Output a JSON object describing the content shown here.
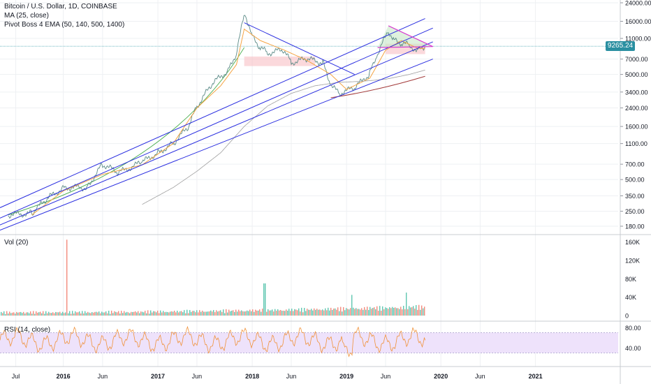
{
  "header": {
    "symbol": "Bitcoin / U.S. Dollar, 1D, COINBASE",
    "ma_label": "MA (25, close)",
    "ema_label": "Pivot Boss 4 EMA (50, 140, 500, 1400)",
    "last_price": "9265.24"
  },
  "panes": {
    "vol_label": "Vol (20)",
    "rsi_label": "RSI (14, close)"
  },
  "colors": {
    "channel": "#2a2ee0",
    "price_line": "#6fb8c2",
    "ma": "#f5a443",
    "ema50": "#4caf50",
    "ema1400": "#9e9e9e",
    "ema_late": "#a33b3b",
    "triangle": "#d63ccf",
    "zone": "#f7b9c0",
    "vol_up": "#5fc6b0",
    "vol_down": "#f28a7d",
    "rsi": "#f0923a",
    "rsi_band": "#eee2fb",
    "grid": "#eef0f3"
  },
  "chart_data": [
    {
      "type": "line",
      "title": "Bitcoin / U.S. Dollar, 1D, COINBASE",
      "scale": "log",
      "y_ticks": [
        "24000.00",
        "16000.00",
        "11000.00",
        "7000.00",
        "5000.00",
        "3400.00",
        "2400.00",
        "1600.00",
        "1100.00",
        "700.00",
        "500.00",
        "350.00",
        "250.00",
        "180.00"
      ],
      "x_ticks": [
        "Jul",
        "2016",
        "Jun",
        "2017",
        "Jun",
        "2018",
        "Jun",
        "2019",
        "Jun",
        "2020",
        "Jun",
        "2021"
      ],
      "grid": true,
      "last_value": 9265.24,
      "series": [
        {
          "name": "Bitcoin / U.S. Dollar",
          "x": [
            "2015-06",
            "2015-09",
            "2015-11",
            "2016-01",
            "2016-04",
            "2016-06",
            "2016-08",
            "2016-11",
            "2017-01",
            "2017-03",
            "2017-05",
            "2017-06",
            "2017-08",
            "2017-10",
            "2017-11",
            "2017-12-17",
            "2018-01",
            "2018-02",
            "2018-03",
            "2018-05",
            "2018-06",
            "2018-08",
            "2018-10",
            "2018-11",
            "2018-12",
            "2019-02",
            "2019-04",
            "2019-05",
            "2019-06-26",
            "2019-07",
            "2019-08",
            "2019-09",
            "2019-10",
            "2019-11"
          ],
          "y": [
            230,
            240,
            330,
            420,
            420,
            700,
            580,
            730,
            900,
            1100,
            1600,
            2500,
            4100,
            5500,
            8000,
            19500,
            11500,
            9000,
            8000,
            8500,
            6500,
            7000,
            6500,
            4000,
            3300,
            3700,
            5100,
            7800,
            13000,
            10500,
            10000,
            9500,
            8400,
            9265.24
          ]
        },
        {
          "name": "MA (25, close)",
          "x": [
            "2015-09",
            "2016-01",
            "2016-06",
            "2016-11",
            "2017-03",
            "2017-06",
            "2017-09",
            "2017-11",
            "2017-12",
            "2018-02",
            "2018-05",
            "2018-08",
            "2018-11",
            "2019-01",
            "2019-04",
            "2019-06",
            "2019-08",
            "2019-10",
            "2019-11"
          ],
          "y": [
            230,
            390,
            560,
            690,
            1100,
            2400,
            3900,
            6200,
            13500,
            10500,
            8600,
            6800,
            5000,
            3600,
            4600,
            8500,
            10500,
            8900,
            8800
          ]
        },
        {
          "name": "EMA 140",
          "x": [
            "2016-11",
            "2017-03",
            "2017-06",
            "2017-09",
            "2017-12",
            "2018-03",
            "2018-06",
            "2018-09",
            "2018-12",
            "2019-03",
            "2019-06",
            "2019-09",
            "2019-11"
          ],
          "y": [
            290,
            420,
            600,
            900,
            1600,
            2500,
            3300,
            3900,
            4200,
            4300,
            4500,
            5000,
            5500
          ]
        }
      ]
    },
    {
      "type": "bar",
      "title": "Vol (20)",
      "y_ticks": [
        "160K",
        "120K",
        "80K",
        "40K",
        "0"
      ],
      "peak_value": 165000
    },
    {
      "type": "line",
      "title": "RSI (14, close)",
      "y_ticks": [
        "80.00",
        "40.00"
      ],
      "band": [
        30,
        70
      ],
      "last_value": 55
    }
  ]
}
